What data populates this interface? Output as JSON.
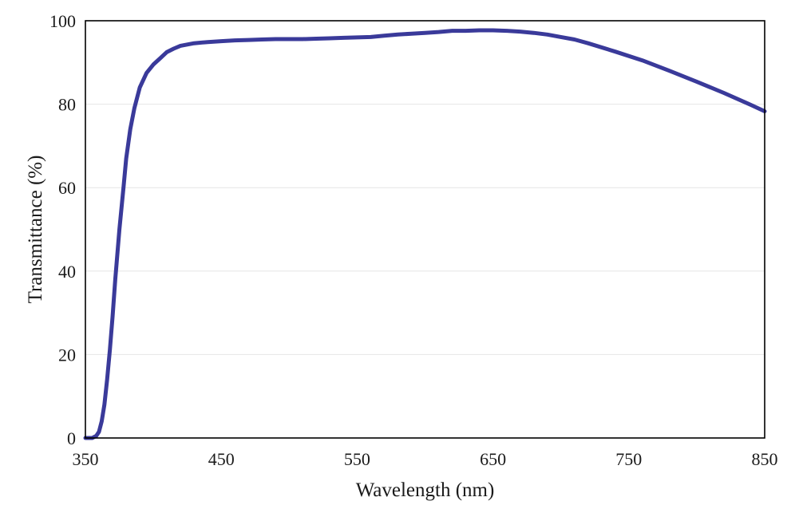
{
  "chart_data": {
    "type": "line",
    "title": "",
    "xlabel": "Wavelength  (nm)",
    "ylabel": "Transmittance  (%)",
    "xlim": [
      350,
      850
    ],
    "ylim": [
      0,
      100
    ],
    "x_ticks": [
      350,
      450,
      550,
      650,
      750,
      850
    ],
    "y_ticks": [
      0,
      20,
      40,
      60,
      80,
      100
    ],
    "grid": "horizontal",
    "colors": {
      "series": "#3a3a9a",
      "frame": "#000000",
      "grid": "#e6e6e6"
    },
    "series": [
      {
        "x": [
          350,
          355,
          358,
          360,
          362,
          364,
          366,
          368,
          370,
          372,
          375,
          378,
          380,
          383,
          386,
          390,
          395,
          400,
          405,
          410,
          415,
          420,
          425,
          430,
          440,
          450,
          460,
          470,
          480,
          490,
          500,
          510,
          520,
          530,
          540,
          550,
          560,
          570,
          580,
          590,
          600,
          610,
          620,
          630,
          640,
          650,
          660,
          670,
          680,
          690,
          700,
          710,
          720,
          740,
          760,
          780,
          800,
          820,
          840,
          850
        ],
        "y": [
          0,
          0,
          0.5,
          1.5,
          4,
          8,
          14,
          21,
          29,
          38,
          50,
          60,
          67,
          74,
          79,
          84,
          87.5,
          89.5,
          91,
          92.5,
          93.3,
          94,
          94.3,
          94.6,
          94.9,
          95.1,
          95.3,
          95.4,
          95.5,
          95.6,
          95.6,
          95.6,
          95.7,
          95.8,
          95.9,
          96.0,
          96.1,
          96.4,
          96.7,
          96.9,
          97.1,
          97.3,
          97.6,
          97.6,
          97.7,
          97.7,
          97.6,
          97.4,
          97.1,
          96.7,
          96.1,
          95.5,
          94.6,
          92.6,
          90.5,
          88.0,
          85.4,
          82.7,
          79.8,
          78.3
        ]
      }
    ]
  }
}
